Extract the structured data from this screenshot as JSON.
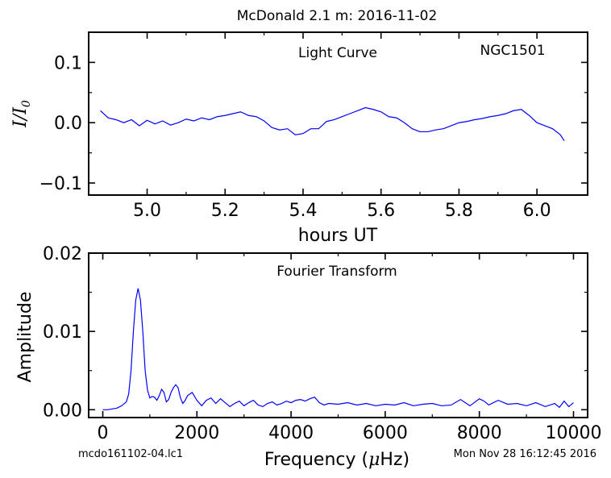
{
  "figure": {
    "title": "McDonald 2.1 m:  2016-11-02",
    "footer_left": "mcdo161102-04.lc1",
    "footer_right": "Mon Nov 28 16:12:45 2016"
  },
  "colors": {
    "series": "#0000ff",
    "axes": "#000000",
    "background": "#ffffff"
  },
  "chart_data": [
    {
      "type": "line",
      "annotation_left": "Light Curve",
      "annotation_right": "NGC1501",
      "xlabel": "hours UT",
      "ylabel_main": "I/I",
      "ylabel_sub": "0",
      "xlim": [
        4.85,
        6.13
      ],
      "ylim": [
        -0.12,
        0.15
      ],
      "xticks": [
        5.0,
        5.2,
        5.4,
        5.6,
        5.8,
        6.0
      ],
      "xtick_labels": [
        "5.0",
        "5.2",
        "5.4",
        "5.6",
        "5.8",
        "6.0"
      ],
      "yticks": [
        0.1,
        0.0,
        -0.1
      ],
      "ytick_labels": [
        "0.1",
        "0.0",
        "−0.1"
      ],
      "grid": false,
      "series": [
        {
          "x": [
            4.88,
            4.9,
            4.92,
            4.94,
            4.96,
            4.98,
            5.0,
            5.02,
            5.04,
            5.06,
            5.08,
            5.1,
            5.12,
            5.14,
            5.16,
            5.18,
            5.2,
            5.22,
            5.24,
            5.26,
            5.28,
            5.3,
            5.32,
            5.34,
            5.36,
            5.38,
            5.4,
            5.42,
            5.44,
            5.46,
            5.48,
            5.5,
            5.52,
            5.54,
            5.56,
            5.58,
            5.6,
            5.62,
            5.64,
            5.66,
            5.68,
            5.7,
            5.72,
            5.74,
            5.76,
            5.78,
            5.8,
            5.82,
            5.84,
            5.86,
            5.88,
            5.9,
            5.92,
            5.94,
            5.96,
            5.98,
            6.0,
            6.02,
            6.04,
            6.06,
            6.07
          ],
          "y": [
            0.02,
            0.008,
            0.005,
            0.0,
            0.005,
            -0.005,
            0.004,
            -0.002,
            0.003,
            -0.004,
            0.0,
            0.006,
            0.003,
            0.008,
            0.005,
            0.01,
            0.012,
            0.015,
            0.018,
            0.012,
            0.01,
            0.003,
            -0.008,
            -0.012,
            -0.01,
            -0.02,
            -0.018,
            -0.01,
            -0.01,
            0.002,
            0.005,
            0.01,
            0.015,
            0.02,
            0.025,
            0.022,
            0.018,
            0.01,
            0.008,
            0.0,
            -0.01,
            -0.015,
            -0.015,
            -0.012,
            -0.01,
            -0.005,
            0.0,
            0.002,
            0.005,
            0.007,
            0.01,
            0.012,
            0.015,
            0.02,
            0.022,
            0.012,
            0.0,
            -0.005,
            -0.01,
            -0.02,
            -0.03
          ]
        }
      ]
    },
    {
      "type": "line",
      "annotation": "Fourier Transform",
      "xlabel_main": "Frequency (",
      "xlabel_mu": "μ",
      "xlabel_tail": "Hz)",
      "ylabel": "Amplitude",
      "xlim": [
        -300,
        10300
      ],
      "ylim": [
        -0.001,
        0.02
      ],
      "xticks": [
        0,
        2000,
        4000,
        6000,
        8000,
        10000
      ],
      "xtick_labels": [
        "0",
        "2000",
        "4000",
        "6000",
        "8000",
        "10000"
      ],
      "yticks": [
        0.02,
        0.01,
        0.0
      ],
      "ytick_labels": [
        "0.02",
        "0.01",
        "0.00"
      ],
      "grid": false,
      "series": [
        {
          "x": [
            0,
            100,
            200,
            300,
            400,
            500,
            550,
            600,
            650,
            700,
            750,
            800,
            850,
            900,
            950,
            1000,
            1050,
            1100,
            1150,
            1200,
            1250,
            1300,
            1350,
            1400,
            1450,
            1500,
            1550,
            1600,
            1650,
            1700,
            1750,
            1800,
            1900,
            2000,
            2100,
            2200,
            2300,
            2400,
            2500,
            2600,
            2700,
            2800,
            2900,
            3000,
            3100,
            3200,
            3300,
            3400,
            3500,
            3600,
            3700,
            3800,
            3900,
            4000,
            4100,
            4200,
            4300,
            4400,
            4500,
            4600,
            4700,
            4800,
            5000,
            5200,
            5400,
            5600,
            5800,
            6000,
            6200,
            6400,
            6600,
            6800,
            7000,
            7200,
            7400,
            7600,
            7700,
            7800,
            8000,
            8100,
            8200,
            8400,
            8600,
            8800,
            9000,
            9200,
            9400,
            9600,
            9700,
            9800,
            9900,
            10000
          ],
          "y": [
            0.0,
            0.0,
            0.0001,
            0.0002,
            0.0005,
            0.001,
            0.002,
            0.005,
            0.01,
            0.014,
            0.0155,
            0.014,
            0.01,
            0.005,
            0.0025,
            0.0015,
            0.0017,
            0.0016,
            0.0012,
            0.0018,
            0.0026,
            0.0022,
            0.001,
            0.0013,
            0.0022,
            0.0028,
            0.0032,
            0.0028,
            0.0015,
            0.0008,
            0.0012,
            0.0018,
            0.0022,
            0.0012,
            0.0005,
            0.0012,
            0.0015,
            0.0008,
            0.0014,
            0.0009,
            0.0004,
            0.0008,
            0.0011,
            0.0005,
            0.0009,
            0.0012,
            0.0006,
            0.0004,
            0.0008,
            0.001,
            0.0006,
            0.0008,
            0.0011,
            0.0009,
            0.0012,
            0.0013,
            0.0011,
            0.0014,
            0.0016,
            0.0009,
            0.0006,
            0.0008,
            0.0007,
            0.0009,
            0.0006,
            0.0008,
            0.0005,
            0.0007,
            0.0006,
            0.0009,
            0.0005,
            0.0007,
            0.0008,
            0.0005,
            0.0006,
            0.0013,
            0.0009,
            0.0005,
            0.0014,
            0.0011,
            0.0006,
            0.0012,
            0.0007,
            0.0008,
            0.0005,
            0.0009,
            0.0004,
            0.0008,
            0.0003,
            0.0011,
            0.0004,
            0.0009
          ]
        }
      ]
    }
  ]
}
